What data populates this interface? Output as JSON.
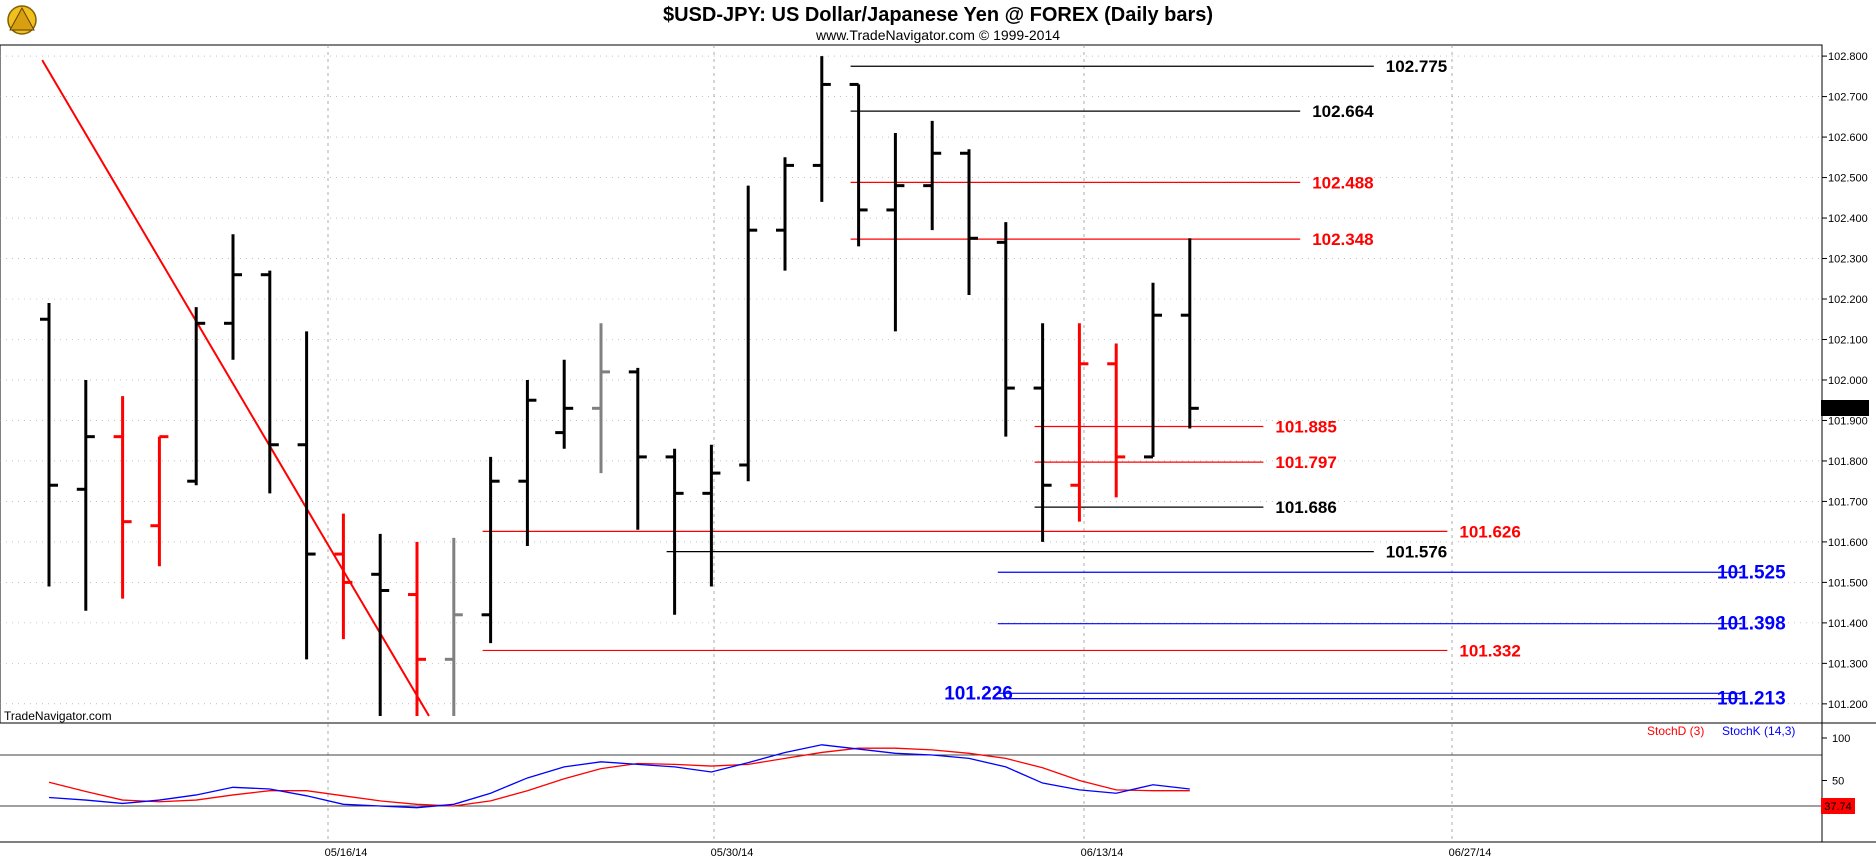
{
  "header": {
    "title": "$USD-JPY:  US Dollar/Japanese Yen @ FOREX  (Daily bars)",
    "subtitle": "www.TradeNavigator.com © 1999-2014",
    "watermark": "TradeNavigator.com",
    "logo_icon": "trade-navigator-logo-icon"
  },
  "colors": {
    "up": "#000000",
    "down": "#ff0000",
    "neutral": "#808080",
    "blue": "#0000ff",
    "grid": "#9a9a9a"
  },
  "chart_data": {
    "type": "ohlc",
    "title": "$USD-JPY:  US Dollar/Japanese Yen @ FOREX  (Daily bars)",
    "ylim": [
      101.17,
      102.82
    ],
    "y_ticks": [
      "102.800",
      "102.700",
      "102.600",
      "102.500",
      "102.400",
      "102.300",
      "102.200",
      "102.100",
      "102.000",
      "101.900",
      "101.800",
      "101.700",
      "101.600",
      "101.500",
      "101.400",
      "101.300",
      "101.200"
    ],
    "x_ticks": [
      "05/16/14",
      "05/30/14",
      "06/13/14",
      "06/27/14"
    ],
    "last_price": "101.931",
    "bars": [
      {
        "o": 102.15,
        "h": 102.19,
        "l": 101.49,
        "c": 101.74,
        "color": "up"
      },
      {
        "o": 101.73,
        "h": 102.0,
        "l": 101.43,
        "c": 101.86,
        "color": "up"
      },
      {
        "o": 101.86,
        "h": 101.96,
        "l": 101.46,
        "c": 101.65,
        "color": "down"
      },
      {
        "o": 101.64,
        "h": 101.86,
        "l": 101.54,
        "c": 101.86,
        "color": "down"
      },
      {
        "o": 101.75,
        "h": 102.18,
        "l": 101.74,
        "c": 102.14,
        "color": "up"
      },
      {
        "o": 102.14,
        "h": 102.36,
        "l": 102.05,
        "c": 102.26,
        "color": "up"
      },
      {
        "o": 102.26,
        "h": 102.27,
        "l": 101.72,
        "c": 101.84,
        "color": "up"
      },
      {
        "o": 101.84,
        "h": 102.12,
        "l": 101.31,
        "c": 101.57,
        "color": "up"
      },
      {
        "o": 101.57,
        "h": 101.67,
        "l": 101.36,
        "c": 101.5,
        "color": "down"
      },
      {
        "o": 101.52,
        "h": 101.62,
        "l": 101.17,
        "c": 101.48,
        "color": "up"
      },
      {
        "o": 101.47,
        "h": 101.6,
        "l": 101.17,
        "c": 101.31,
        "color": "down"
      },
      {
        "o": 101.31,
        "h": 101.61,
        "l": 101.17,
        "c": 101.42,
        "color": "neutral"
      },
      {
        "o": 101.42,
        "h": 101.81,
        "l": 101.35,
        "c": 101.75,
        "color": "up"
      },
      {
        "o": 101.75,
        "h": 102.0,
        "l": 101.59,
        "c": 101.95,
        "color": "up"
      },
      {
        "o": 101.87,
        "h": 102.05,
        "l": 101.83,
        "c": 101.93,
        "color": "up"
      },
      {
        "o": 101.93,
        "h": 102.14,
        "l": 101.77,
        "c": 102.02,
        "color": "neutral"
      },
      {
        "o": 102.02,
        "h": 102.03,
        "l": 101.63,
        "c": 101.81,
        "color": "up"
      },
      {
        "o": 101.81,
        "h": 101.83,
        "l": 101.42,
        "c": 101.72,
        "color": "up"
      },
      {
        "o": 101.72,
        "h": 101.84,
        "l": 101.49,
        "c": 101.77,
        "color": "up"
      },
      {
        "o": 101.79,
        "h": 102.48,
        "l": 101.75,
        "c": 102.37,
        "color": "up"
      },
      {
        "o": 102.37,
        "h": 102.55,
        "l": 102.27,
        "c": 102.53,
        "color": "up"
      },
      {
        "o": 102.53,
        "h": 102.8,
        "l": 102.44,
        "c": 102.73,
        "color": "up"
      },
      {
        "o": 102.73,
        "h": 102.73,
        "l": 102.33,
        "c": 102.42,
        "color": "up"
      },
      {
        "o": 102.42,
        "h": 102.61,
        "l": 102.12,
        "c": 102.48,
        "color": "up"
      },
      {
        "o": 102.48,
        "h": 102.64,
        "l": 102.37,
        "c": 102.56,
        "color": "up"
      },
      {
        "o": 102.56,
        "h": 102.57,
        "l": 102.21,
        "c": 102.35,
        "color": "up"
      },
      {
        "o": 102.34,
        "h": 102.39,
        "l": 101.86,
        "c": 101.98,
        "color": "up"
      },
      {
        "o": 101.98,
        "h": 102.14,
        "l": 101.6,
        "c": 101.74,
        "color": "up"
      },
      {
        "o": 101.74,
        "h": 102.14,
        "l": 101.65,
        "c": 102.04,
        "color": "down"
      },
      {
        "o": 102.04,
        "h": 102.09,
        "l": 101.71,
        "c": 101.81,
        "color": "down"
      },
      {
        "o": 101.81,
        "h": 102.24,
        "l": 101.81,
        "c": 102.16,
        "color": "up"
      },
      {
        "o": 102.16,
        "h": 102.35,
        "l": 101.88,
        "c": 101.93,
        "color": "up"
      }
    ],
    "levels": [
      {
        "label": "102.775",
        "price": 102.775,
        "color": "#000000",
        "start": 22,
        "end": 36,
        "tx": 36,
        "size": "lvl"
      },
      {
        "label": "102.664",
        "price": 102.664,
        "color": "#000000",
        "start": 22,
        "end": 34,
        "tx": 34,
        "size": "lvl"
      },
      {
        "label": "102.488",
        "price": 102.488,
        "color": "#ff0000",
        "start": 22,
        "end": 34,
        "tx": 34,
        "size": "lvl"
      },
      {
        "label": "102.348",
        "price": 102.348,
        "color": "#ff0000",
        "start": 22,
        "end": 34,
        "tx": 34,
        "size": "lvl"
      },
      {
        "label": "101.885",
        "price": 101.885,
        "color": "#ff0000",
        "start": 27,
        "end": 33,
        "tx": 33,
        "size": "lvl"
      },
      {
        "label": "101.797",
        "price": 101.797,
        "color": "#ff0000",
        "start": 27,
        "end": 33,
        "tx": 33,
        "size": "lvl"
      },
      {
        "label": "101.686",
        "price": 101.686,
        "color": "#000000",
        "start": 27,
        "end": 33,
        "tx": 33,
        "size": "lvl"
      },
      {
        "label": "101.626",
        "price": 101.626,
        "color": "#ff0000",
        "start": 12,
        "end": 38,
        "tx": 38,
        "size": "lvl"
      },
      {
        "label": "101.576",
        "price": 101.576,
        "color": "#000000",
        "start": 17,
        "end": 36,
        "tx": 36,
        "size": "lvl"
      },
      {
        "label": "101.525",
        "price": 101.525,
        "color": "#0000ff",
        "start": 26,
        "end": 46,
        "tx": 45,
        "size": "lvl-blue"
      },
      {
        "label": "101.398",
        "price": 101.398,
        "color": "#0000ff",
        "start": 26,
        "end": 46,
        "tx": 45,
        "size": "lvl-blue"
      },
      {
        "label": "101.332",
        "price": 101.332,
        "color": "#ff0000",
        "start": 12,
        "end": 38,
        "tx": 38,
        "size": "lvl"
      },
      {
        "label": "101.213",
        "price": 101.213,
        "color": "#0000ff",
        "start": 26,
        "end": 46,
        "tx": 45,
        "size": "lvl-blue"
      },
      {
        "label": "101.226",
        "price": 101.226,
        "color": "#0000ff",
        "start": 26,
        "end": 46,
        "tx": 24,
        "size": "lvl-blue"
      }
    ],
    "trendline": [
      {
        "bar": -1,
        "price": 102.79
      },
      {
        "bar": 10,
        "price": 101.17
      }
    ],
    "stochastic": {
      "ylim": [
        0,
        100
      ],
      "y_ticks": [
        "100",
        "50"
      ],
      "d_label": "StochD (3)",
      "k_label": "StochK (14,3)",
      "last_value": "37.74",
      "k_values": [
        30,
        27,
        23,
        27,
        33,
        42,
        40,
        32,
        22,
        20,
        18,
        22,
        35,
        53,
        66,
        72,
        69,
        66,
        60,
        71,
        83,
        92,
        87,
        82,
        80,
        76,
        66,
        47,
        39,
        35,
        45,
        40
      ],
      "d_values": [
        48,
        37,
        27,
        25,
        27,
        33,
        38,
        38,
        32,
        26,
        22,
        20,
        26,
        38,
        52,
        64,
        70,
        69,
        67,
        69,
        76,
        83,
        88,
        88,
        86,
        82,
        76,
        65,
        50,
        39,
        38,
        38
      ]
    }
  }
}
